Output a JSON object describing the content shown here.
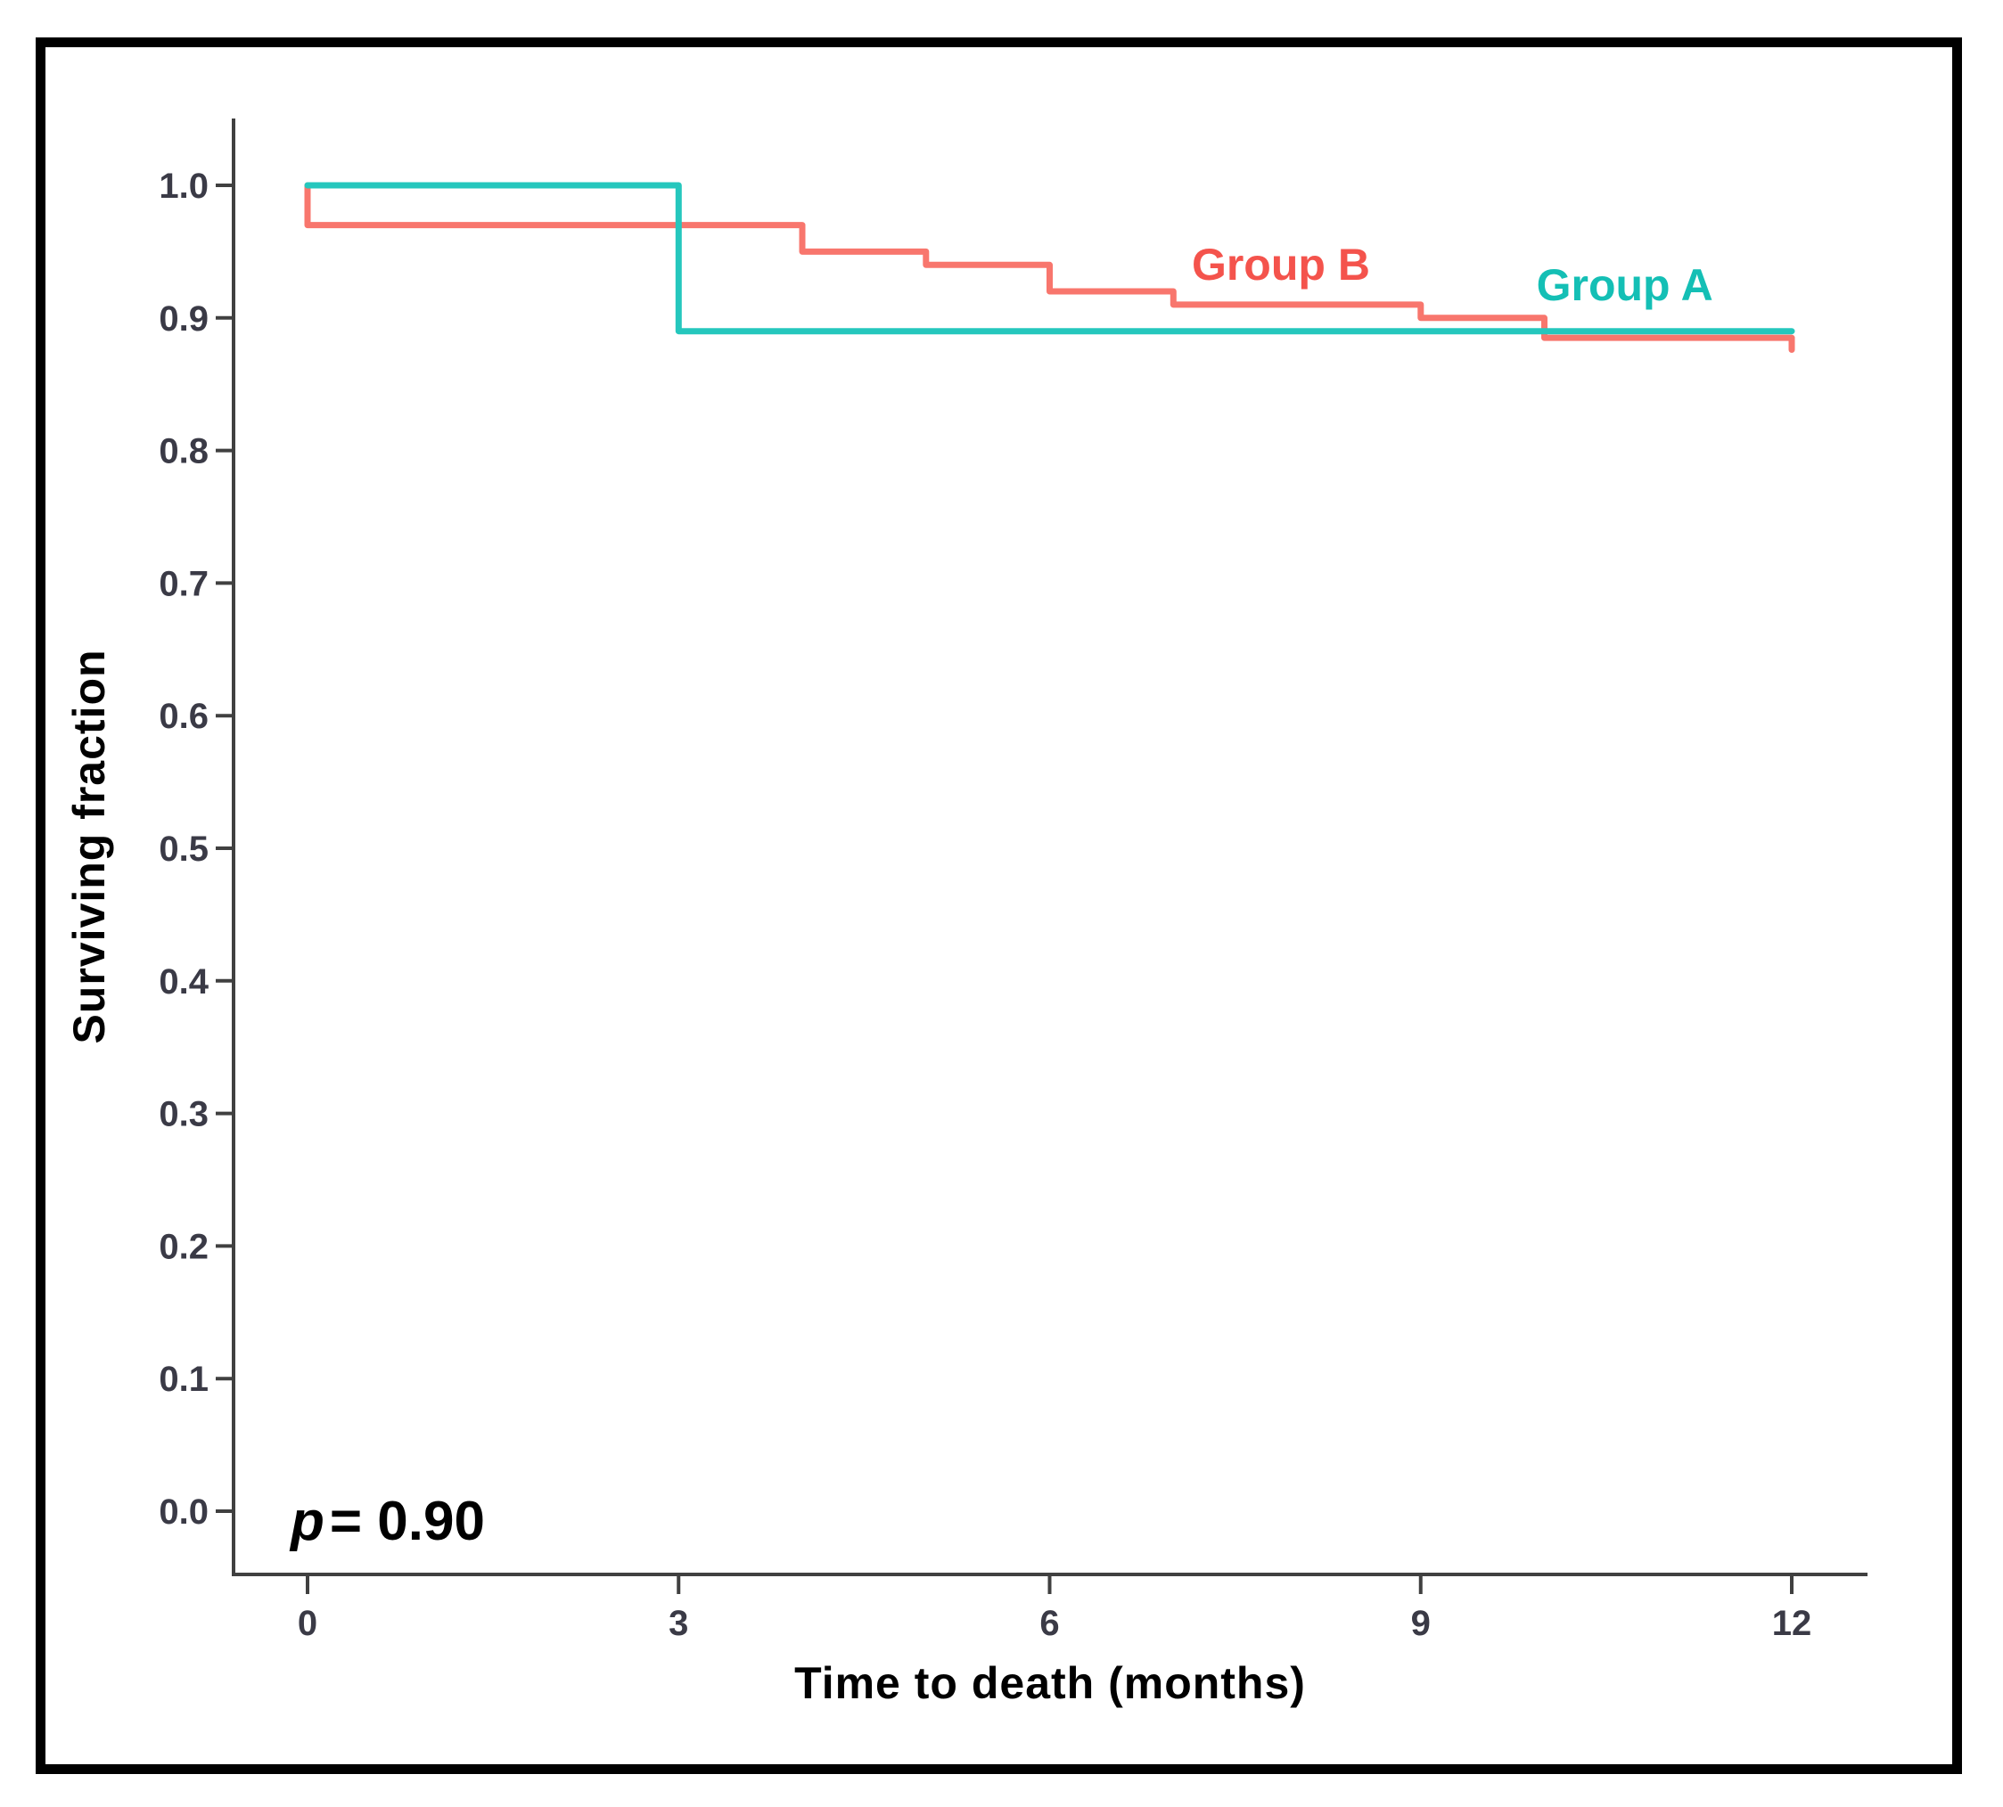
{
  "figure": {
    "background": "#ffffff",
    "border_color": "#000000"
  },
  "annotation": {
    "symbol": "p",
    "text": "= 0.90"
  },
  "chart_data": {
    "type": "line",
    "variant": "kaplan_meier_step_curves",
    "title": "",
    "xlabel": "Time to death (months)",
    "ylabel": "Surviving fraction",
    "xlim": [
      0,
      12
    ],
    "ylim": [
      0.0,
      1.0
    ],
    "grid": false,
    "legend_position": "inline-curve-labels",
    "p_value_annotation": "p = 0.90",
    "axis_color": "#404040",
    "tick_label_color": "#3a3a46",
    "x_tick_values": [
      0,
      3,
      6,
      9,
      12
    ],
    "x_tick_labels": [
      "0",
      "3",
      "6",
      "9",
      "12"
    ],
    "y_tick_values": [
      0.0,
      0.1,
      0.2,
      0.3,
      0.4,
      0.5,
      0.6,
      0.7,
      0.8,
      0.9,
      1.0
    ],
    "y_tick_labels": [
      "0.0",
      "0.1",
      "0.2",
      "0.3",
      "0.4",
      "0.5",
      "0.6",
      "0.7",
      "0.8",
      "0.9",
      "1.0"
    ],
    "series": [
      {
        "name": "Group B",
        "line_color": "#F8766D",
        "label_color": "#F4534C",
        "label_anchor": {
          "x_months": 7.87,
          "y_fraction": 0.94
        },
        "points": [
          [
            0,
            1.0
          ],
          [
            0,
            0.97
          ],
          [
            4,
            0.97
          ],
          [
            4,
            0.95
          ],
          [
            5,
            0.95
          ],
          [
            5,
            0.94
          ],
          [
            6,
            0.94
          ],
          [
            6,
            0.92
          ],
          [
            7,
            0.92
          ],
          [
            7,
            0.91
          ],
          [
            9,
            0.91
          ],
          [
            9,
            0.9
          ],
          [
            10,
            0.9
          ],
          [
            10,
            0.885
          ],
          [
            12,
            0.885
          ],
          [
            12,
            0.876
          ]
        ]
      },
      {
        "name": "Group A",
        "line_color": "#25C7BD",
        "label_color": "#14BFB5",
        "label_anchor": {
          "x_months": 10.65,
          "y_fraction": 0.925
        },
        "points": [
          [
            0,
            1.0
          ],
          [
            3,
            1.0
          ],
          [
            3,
            0.89
          ],
          [
            12,
            0.89
          ]
        ]
      }
    ]
  }
}
